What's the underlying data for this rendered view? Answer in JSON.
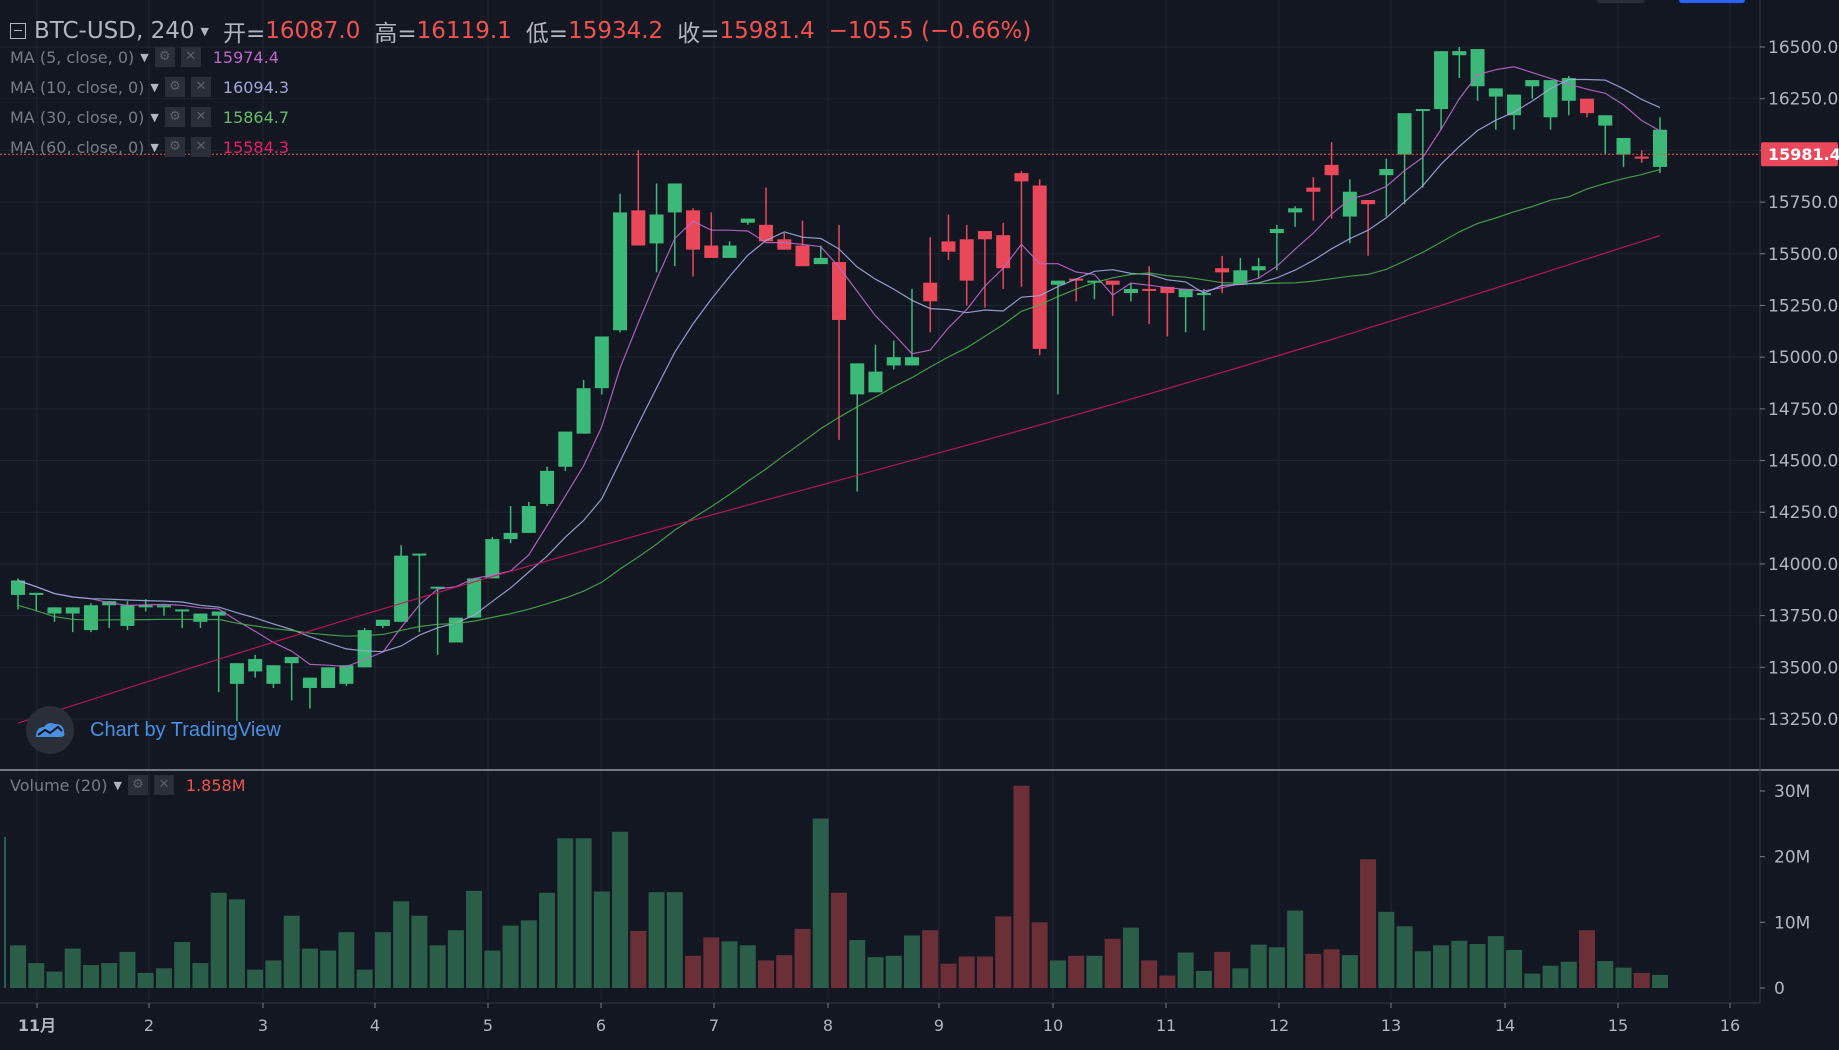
{
  "header": {
    "symbol": "BTC-USD, 240",
    "open_label": "开=",
    "open": "16087.0",
    "high_label": "高=",
    "high": "16119.1",
    "low_label": "低=",
    "low": "15934.2",
    "close_label": "收=",
    "close": "15981.4",
    "change": "−105.5 (−0.66%)"
  },
  "indicators": [
    {
      "label": "MA (5, close, 0)",
      "value": "15974.4",
      "color": "#ba68c8"
    },
    {
      "label": "MA (10, close, 0)",
      "value": "16094.3",
      "color": "#9fa8da"
    },
    {
      "label": "MA (30, close, 0)",
      "value": "15864.7",
      "color": "#66bb6a"
    },
    {
      "label": "MA (60, close, 0)",
      "value": "15584.3",
      "color": "#e91e63"
    }
  ],
  "volume": {
    "label": "Volume (20)",
    "value": "1.858M"
  },
  "branding": {
    "text": "Chart by TradingView"
  },
  "price_tag": "15981.4",
  "colors": {
    "up": "#26a69a",
    "down": "#ef5350",
    "background": "#131722",
    "grid": "#1f2433"
  },
  "chart_data": {
    "type": "candlestick",
    "interval": "240",
    "x_ticks": [
      "11月",
      "2",
      "3",
      "4",
      "5",
      "6",
      "7",
      "8",
      "9",
      "10",
      "11",
      "12",
      "13",
      "14",
      "15",
      "16"
    ],
    "price_ticks": [
      "16500.0",
      "16250.0",
      "16000.0",
      "15750.0",
      "15500.0",
      "15250.0",
      "15000.0",
      "14750.0",
      "14500.0",
      "14250.0",
      "14000.0",
      "13750.0",
      "13500.0",
      "13250.0"
    ],
    "price_range": [
      13100,
      16550
    ],
    "volume_ticks": [
      "30M",
      "20M",
      "10M",
      "0"
    ],
    "volume_range": [
      0,
      31
    ],
    "candles_ohlc_volM": [
      [
        13850,
        13920,
        13780,
        13930,
        6.5
      ],
      [
        13850,
        13860,
        13770,
        13780,
        3.8
      ],
      [
        13760,
        13790,
        13720,
        13770,
        2.5
      ],
      [
        13760,
        13790,
        13700,
        13670,
        6.0
      ],
      [
        13680,
        13800,
        13670,
        13810,
        3.5
      ],
      [
        13800,
        13820,
        13700,
        13690,
        3.8
      ],
      [
        13700,
        13800,
        13680,
        13820,
        5.5
      ],
      [
        13790,
        13800,
        13770,
        13830,
        2.3
      ],
      [
        13790,
        13800,
        13750,
        13770,
        3.0
      ],
      [
        13770,
        13780,
        13690,
        13700,
        7.0
      ],
      [
        13720,
        13760,
        13690,
        13750,
        3.8
      ],
      [
        13750,
        13770,
        13420,
        13380,
        14.5
      ],
      [
        13420,
        13520,
        13420,
        13240,
        13.5
      ],
      [
        13480,
        13540,
        13450,
        13560,
        2.8
      ],
      [
        13420,
        13510,
        13400,
        13480,
        4.2
      ],
      [
        13520,
        13550,
        13390,
        13340,
        11.0
      ],
      [
        13400,
        13450,
        13380,
        13300,
        6.0
      ],
      [
        13400,
        13500,
        13410,
        13400,
        5.7
      ],
      [
        13420,
        13510,
        13420,
        13410,
        8.5
      ],
      [
        13500,
        13680,
        13500,
        13690,
        2.8
      ],
      [
        13700,
        13730,
        13690,
        13720,
        8.5
      ],
      [
        13720,
        14040,
        13720,
        14090,
        13.2
      ],
      [
        14050,
        14050,
        13940,
        13670,
        11.0
      ],
      [
        13890,
        13890,
        13610,
        13560,
        6.5
      ],
      [
        13620,
        13740,
        13620,
        13720,
        8.8
      ],
      [
        13740,
        13930,
        13750,
        13930,
        14.8
      ],
      [
        13930,
        14120,
        13940,
        14130,
        5.7
      ],
      [
        14120,
        14150,
        14100,
        14280,
        9.5
      ],
      [
        14150,
        14280,
        14150,
        14300,
        10.3
      ],
      [
        14290,
        14450,
        14280,
        14470,
        14.5
      ],
      [
        14470,
        14640,
        14450,
        14620,
        22.8
      ],
      [
        14630,
        14850,
        14630,
        14890,
        22.8
      ],
      [
        14850,
        15100,
        14820,
        15100,
        14.7
      ],
      [
        15130,
        15700,
        15120,
        15790,
        23.8
      ],
      [
        15710,
        15540,
        15690,
        16000,
        8.7
      ],
      [
        15550,
        15690,
        15410,
        15840,
        14.6
      ],
      [
        15700,
        15840,
        15440,
        15720,
        14.6
      ],
      [
        15710,
        15520,
        15390,
        15720,
        4.9
      ],
      [
        15540,
        15480,
        15560,
        15700,
        7.7
      ],
      [
        15480,
        15540,
        15510,
        15560,
        7.1
      ],
      [
        15650,
        15670,
        15640,
        15650,
        6.5
      ],
      [
        15640,
        15560,
        15560,
        15820,
        4.2
      ],
      [
        15570,
        15520,
        15540,
        15600,
        5.0
      ],
      [
        15540,
        15440,
        15460,
        15660,
        9.0
      ],
      [
        15450,
        15480,
        15460,
        15540,
        25.8
      ],
      [
        15460,
        15180,
        14600,
        15640,
        14.5
      ],
      [
        14820,
        14970,
        14350,
        14870,
        7.3
      ],
      [
        14830,
        14930,
        14980,
        15060,
        4.7
      ],
      [
        14960,
        15000,
        14940,
        15080,
        4.9
      ],
      [
        14960,
        15000,
        15290,
        15330,
        8.0
      ],
      [
        15360,
        15270,
        15120,
        15580,
        8.8
      ],
      [
        15560,
        15510,
        15470,
        15690,
        3.7
      ],
      [
        15570,
        15370,
        15250,
        15640,
        4.8
      ],
      [
        15610,
        15570,
        15240,
        15580,
        4.8
      ],
      [
        15590,
        15430,
        15330,
        15650,
        10.9
      ],
      [
        15890,
        15850,
        15340,
        15900,
        30.8
      ],
      [
        15830,
        15040,
        15010,
        15860,
        10.0
      ],
      [
        15350,
        15370,
        14820,
        15040,
        4.2
      ],
      [
        15380,
        15370,
        15270,
        15270,
        4.9
      ],
      [
        15360,
        15370,
        15280,
        15340,
        4.9
      ],
      [
        15370,
        15350,
        15200,
        15350,
        7.5
      ],
      [
        15310,
        15330,
        15270,
        15360,
        9.2
      ],
      [
        15330,
        15320,
        15160,
        15440,
        4.2
      ],
      [
        15340,
        15310,
        15100,
        15190,
        1.9
      ],
      [
        15290,
        15330,
        15120,
        15120,
        5.4
      ],
      [
        15300,
        15310,
        15130,
        15330,
        2.6
      ],
      [
        15430,
        15410,
        15310,
        15490,
        5.5
      ],
      [
        15350,
        15420,
        15370,
        15480,
        3.0
      ],
      [
        15420,
        15440,
        15380,
        15480,
        6.6
      ],
      [
        15600,
        15620,
        15420,
        15640,
        6.2
      ],
      [
        15700,
        15720,
        15630,
        15730,
        11.8
      ],
      [
        15820,
        15800,
        15660,
        15870,
        5.2
      ],
      [
        15930,
        15880,
        15670,
        16040,
        5.9
      ],
      [
        15680,
        15800,
        15550,
        15860,
        5.0
      ],
      [
        15760,
        15740,
        15490,
        15720,
        19.6
      ],
      [
        15880,
        15910,
        15680,
        15960,
        11.6
      ],
      [
        15980,
        16180,
        15960,
        15740,
        9.4
      ],
      [
        16200,
        16200,
        15820,
        16130,
        5.6
      ],
      [
        16200,
        16480,
        16100,
        16400,
        6.5
      ],
      [
        16460,
        16480,
        16350,
        16500,
        7.2
      ],
      [
        16310,
        16490,
        16280,
        16240,
        6.7
      ],
      [
        16260,
        16300,
        16100,
        16180,
        7.9
      ],
      [
        16170,
        16270,
        16100,
        16260,
        5.8
      ],
      [
        16310,
        16340,
        16250,
        16330,
        2.2
      ],
      [
        16160,
        16340,
        16100,
        16340,
        3.4
      ],
      [
        16240,
        16350,
        16170,
        16360,
        4.0
      ],
      [
        16250,
        16180,
        16160,
        16230,
        8.8
      ],
      [
        16120,
        16170,
        15980,
        16000,
        4.1
      ],
      [
        15980,
        16060,
        15920,
        15990,
        3.1
      ],
      [
        15970,
        15960,
        15940,
        16000,
        2.3
      ],
      [
        15920,
        16100,
        15890,
        16160,
        2.0
      ]
    ]
  }
}
